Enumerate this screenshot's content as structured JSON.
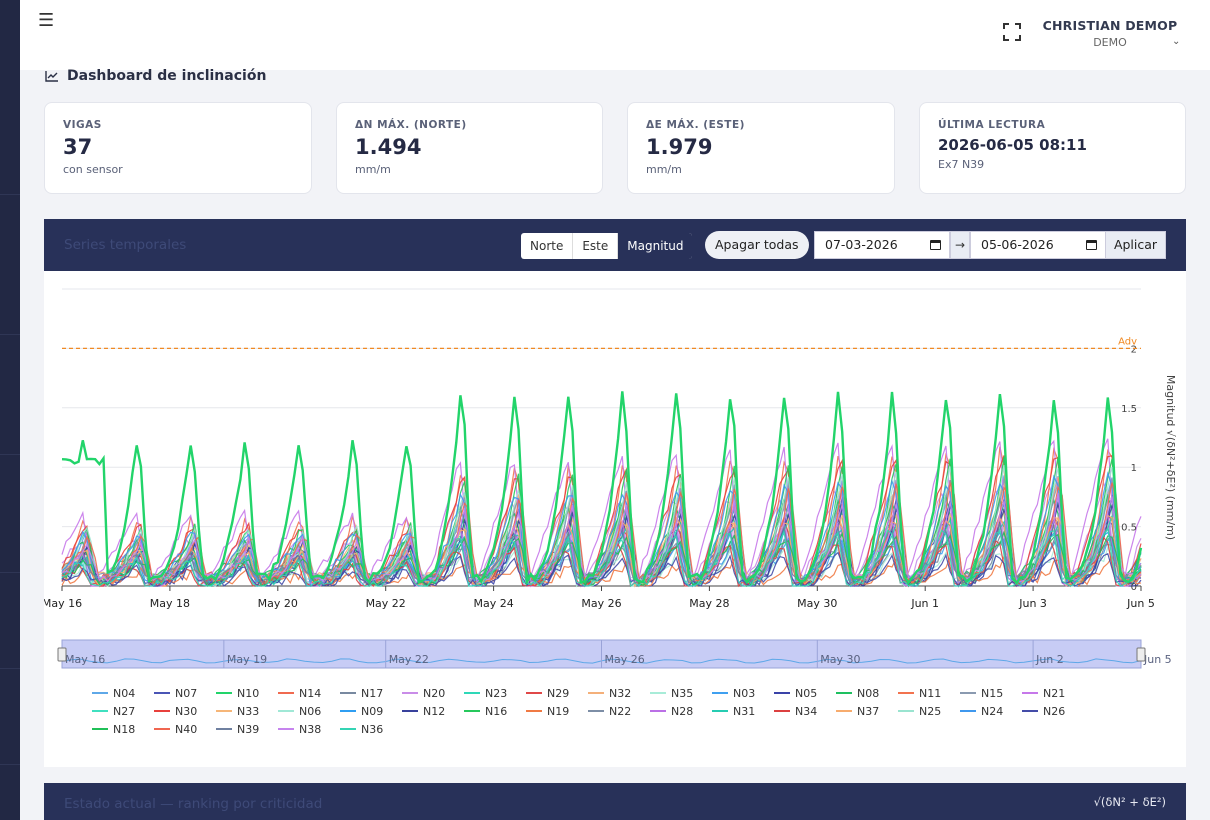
{
  "user": {
    "name": "CHRISTIAN DEMOP",
    "role": "DEMO"
  },
  "icons": {
    "menu": "hamburger-icon",
    "fullscreen": "fullscreen-icon",
    "chevron": "chevron-down-icon",
    "chart": "line-chart-icon",
    "calendar": "calendar-icon"
  },
  "page": {
    "title": "Dashboard de inclinación"
  },
  "kpis": [
    {
      "label": "VIGAS",
      "value": "37",
      "sub": "con sensor"
    },
    {
      "label": "ΔN MÁX. (NORTE)",
      "value": "1.494",
      "sub": "mm/m"
    },
    {
      "label": "ΔE MÁX. (ESTE)",
      "value": "1.979",
      "sub": "mm/m"
    },
    {
      "label": "ÚLTIMA LECTURA",
      "value": "2026-06-05 08:11",
      "sub": "Ex7 N39"
    }
  ],
  "series_panel": {
    "title": "Series temporales",
    "modes": [
      "Norte",
      "Este",
      "Magnitud"
    ],
    "active_mode": "Magnitud",
    "toggle_all_label": "Apagar todas",
    "date_from": "07-03-2026",
    "date_arrow": "→",
    "date_to": "05-06-2026",
    "apply_label": "Aplicar"
  },
  "chart_data": {
    "type": "line",
    "ylabel": "Magnitud √(δN²+δE²) (mm/m)",
    "ylim": [
      0,
      2.5
    ],
    "yticks": [
      "0",
      "0.5",
      "1",
      "1.5",
      "2"
    ],
    "xticks": [
      "May 16",
      "May 18",
      "May 20",
      "May 22",
      "May 24",
      "May 26",
      "May 28",
      "May 30",
      "Jun 1",
      "Jun 3",
      "Jun 5"
    ],
    "range_ticks": [
      "May 16",
      "May 19",
      "May 22",
      "May 26",
      "May 30",
      "Jun 2",
      "Jun 5"
    ],
    "threshold": {
      "label": "Adv",
      "value": 2.0,
      "color": "#f08a24"
    },
    "x_start": "2026-05-16",
    "x_end": "2026-06-05",
    "legend_placement": "bottom",
    "grid": true,
    "highlight_series": "N10",
    "series": [
      {
        "name": "N04",
        "color": "#5ea8e8"
      },
      {
        "name": "N07",
        "color": "#4a55b5"
      },
      {
        "name": "N10",
        "color": "#22d46a"
      },
      {
        "name": "N14",
        "color": "#f06a50"
      },
      {
        "name": "N17",
        "color": "#7889a0"
      },
      {
        "name": "N20",
        "color": "#c98ce8"
      },
      {
        "name": "N23",
        "color": "#2ed8b8"
      },
      {
        "name": "N29",
        "color": "#e04848"
      },
      {
        "name": "N32",
        "color": "#f4b07a"
      },
      {
        "name": "N35",
        "color": "#a8ecd8"
      },
      {
        "name": "N03",
        "color": "#3fa0f0"
      },
      {
        "name": "N05",
        "color": "#3a43a8"
      },
      {
        "name": "N08",
        "color": "#1ec060"
      },
      {
        "name": "N11",
        "color": "#f2734f"
      },
      {
        "name": "N15",
        "color": "#8a9ab0"
      },
      {
        "name": "N21",
        "color": "#c678ea"
      },
      {
        "name": "N27",
        "color": "#40e0c0"
      },
      {
        "name": "N30",
        "color": "#e8403c"
      },
      {
        "name": "N33",
        "color": "#f6b678"
      },
      {
        "name": "N06",
        "color": "#a0e8d6"
      },
      {
        "name": "N09",
        "color": "#2f9ef2"
      },
      {
        "name": "N12",
        "color": "#38419c"
      },
      {
        "name": "N16",
        "color": "#26c85c"
      },
      {
        "name": "N19",
        "color": "#f07a44"
      },
      {
        "name": "N22",
        "color": "#7d8ea6"
      },
      {
        "name": "N28",
        "color": "#bb70e6"
      },
      {
        "name": "N31",
        "color": "#26ccb2"
      },
      {
        "name": "N34",
        "color": "#dc4040"
      },
      {
        "name": "N37",
        "color": "#f7ac6e"
      },
      {
        "name": "N25",
        "color": "#9ae4d0"
      },
      {
        "name": "N24",
        "color": "#3f98ee"
      },
      {
        "name": "N26",
        "color": "#444ca8"
      },
      {
        "name": "N18",
        "color": "#20c058"
      },
      {
        "name": "N40",
        "color": "#f06650"
      },
      {
        "name": "N39",
        "color": "#6f80a0"
      },
      {
        "name": "N38",
        "color": "#c684ee"
      },
      {
        "name": "N36",
        "color": "#34d4b4"
      }
    ]
  },
  "ranking_panel": {
    "title": "Estado actual — ranking por criticidad",
    "formula": "√(δN² + δE²)"
  }
}
